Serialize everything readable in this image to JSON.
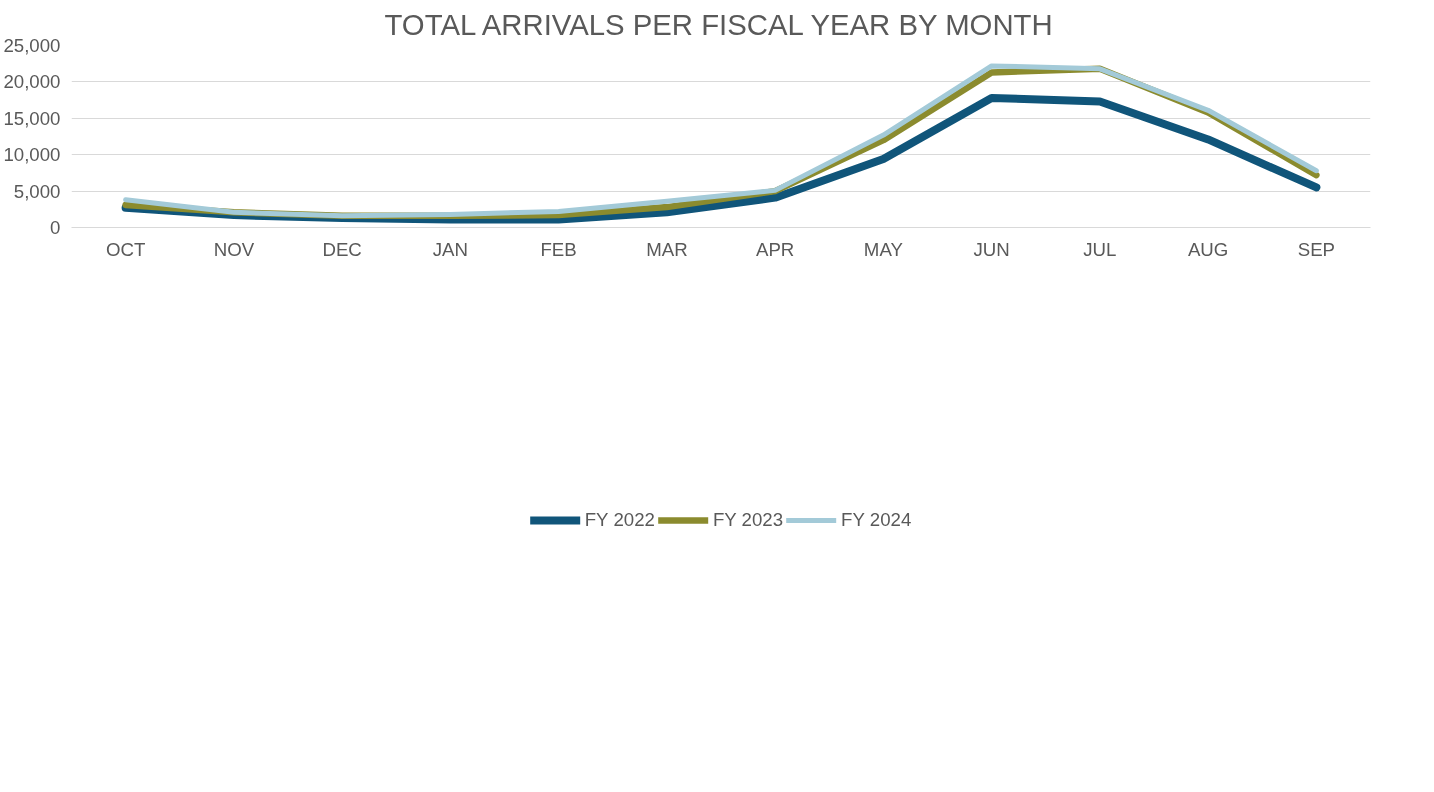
{
  "chart_data": {
    "type": "line",
    "title": "TOTAL ARRIVALS PER FISCAL YEAR BY MONTH",
    "categories": [
      "OCT",
      "NOV",
      "DEC",
      "JAN",
      "FEB",
      "MAR",
      "APR",
      "MAY",
      "JUN",
      "JUL",
      "AUG",
      "SEP"
    ],
    "series": [
      {
        "name": "FY 2022",
        "color": "#10557a",
        "values": [
          2700,
          1700,
          1300,
          1100,
          1100,
          2100,
          4100,
          9400,
          17800,
          17300,
          12100,
          5500
        ]
      },
      {
        "name": "FY 2023",
        "color": "#8b8b2e",
        "values": [
          3100,
          2100,
          1600,
          1600,
          1700,
          2800,
          5000,
          12000,
          21300,
          21800,
          15800,
          7200
        ]
      },
      {
        "name": "FY 2024",
        "color": "#a3cad8",
        "values": [
          3800,
          2100,
          1600,
          1800,
          2200,
          3600,
          5100,
          12700,
          22200,
          21800,
          16100,
          7800
        ]
      }
    ],
    "ylim": [
      0,
      25000
    ],
    "yticks": [
      {
        "value": 0,
        "label": "0"
      },
      {
        "value": 5000,
        "label": "5,000"
      },
      {
        "value": 10000,
        "label": "10,000"
      },
      {
        "value": 15000,
        "label": "15,000"
      },
      {
        "value": 20000,
        "label": "20,000"
      },
      {
        "value": 25000,
        "label": "25,000"
      }
    ],
    "grid": "y",
    "legend": "bottom",
    "marker": "none",
    "line_style": "solid"
  }
}
